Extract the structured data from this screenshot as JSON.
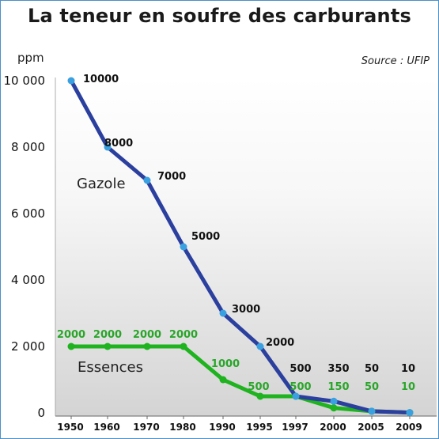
{
  "title": "La teneur en soufre des carburants",
  "source": "Source : UFIP",
  "chart_data": {
    "type": "line",
    "unit": "ppm",
    "x": [
      "1950",
      "1960",
      "1970",
      "1980",
      "1990",
      "1995",
      "1997",
      "2000",
      "2005",
      "2009"
    ],
    "y_ticks": [
      "10 000",
      "8 000",
      "6 000",
      "4 000",
      "2 000",
      "0"
    ],
    "ylim": [
      0,
      10000
    ],
    "grid": false,
    "series": [
      {
        "name": "Gazole",
        "color": "#2b3f9e",
        "values": [
          10000,
          8000,
          7000,
          5000,
          3000,
          2000,
          500,
          350,
          50,
          10
        ],
        "labels": [
          "10000",
          "8000",
          "7000",
          "5000",
          "3000",
          "2000",
          "500",
          "350",
          "50",
          "10"
        ]
      },
      {
        "name": "Essences",
        "color": "#1fb31f",
        "values": [
          2000,
          2000,
          2000,
          2000,
          1000,
          500,
          500,
          150,
          50,
          10
        ],
        "labels": [
          "2000",
          "2000",
          "2000",
          "2000",
          "1000",
          "500",
          "500",
          "150",
          "50",
          "10"
        ]
      }
    ]
  }
}
